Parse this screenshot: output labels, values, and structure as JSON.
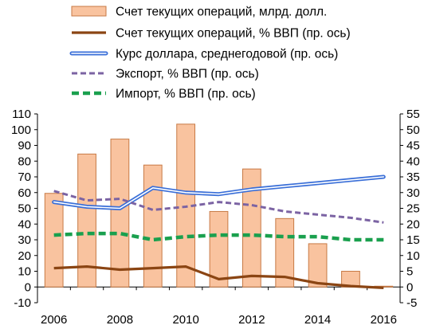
{
  "chart_data": {
    "type": "bar",
    "categories": [
      "2006",
      "2007",
      "2008",
      "2009",
      "2010",
      "2011",
      "2012",
      "2013",
      "2014",
      "2015",
      "2016"
    ],
    "x_tick_labels": [
      "2006",
      "2008",
      "2010",
      "2012",
      "2014",
      "2016"
    ],
    "left_axis": {
      "ylim": [
        -10,
        110
      ],
      "ticks": [
        "-10",
        "0",
        "10",
        "20",
        "30",
        "40",
        "50",
        "60",
        "70",
        "80",
        "90",
        "100",
        "110"
      ]
    },
    "right_axis": {
      "ylim": [
        -5,
        55
      ],
      "ticks": [
        "-5",
        "0",
        "5",
        "10",
        "15",
        "20",
        "25",
        "30",
        "35",
        "40",
        "45",
        "50",
        "55"
      ]
    },
    "series": [
      {
        "name": "Счет текущих операций, млрд. долл.",
        "kind": "bar",
        "axis": "left",
        "values": [
          59.5,
          84.5,
          94,
          77.5,
          103.5,
          48,
          75,
          43.5,
          27.5,
          10,
          0.5
        ],
        "fill": "#f9c39f",
        "stroke": "#c77a45"
      },
      {
        "name": "Счет текущих операций, % ВВП (пр. ось)",
        "kind": "line",
        "axis": "right",
        "values": [
          6,
          6.5,
          5.5,
          6,
          6.5,
          2.5,
          3.5,
          3.2,
          1.2,
          0.3,
          -0.3
        ],
        "color": "#8b4513",
        "style": "solid"
      },
      {
        "name": "Курс доллара, среднегодовой (пр. ось)",
        "kind": "line",
        "axis": "right",
        "values": [
          27,
          25.5,
          25,
          31.5,
          30,
          29.5,
          31,
          32,
          33,
          34,
          35
        ],
        "color": "#3a6fd8",
        "style": "double"
      },
      {
        "name": "Экспорт, % ВВП (пр. ось)",
        "kind": "line",
        "axis": "right",
        "values": [
          30.5,
          27.5,
          28,
          24.5,
          25.5,
          27,
          26,
          24,
          23,
          22,
          20.5
        ],
        "color": "#7b63a3",
        "style": "dashed"
      },
      {
        "name": "Импорт, % ВВП (пр. ось)",
        "kind": "line",
        "axis": "right",
        "values": [
          16.5,
          17,
          17,
          15,
          16,
          16.5,
          16.5,
          16,
          16,
          15,
          15
        ],
        "color": "#1aa04e",
        "style": "dashed-thick"
      }
    ]
  }
}
